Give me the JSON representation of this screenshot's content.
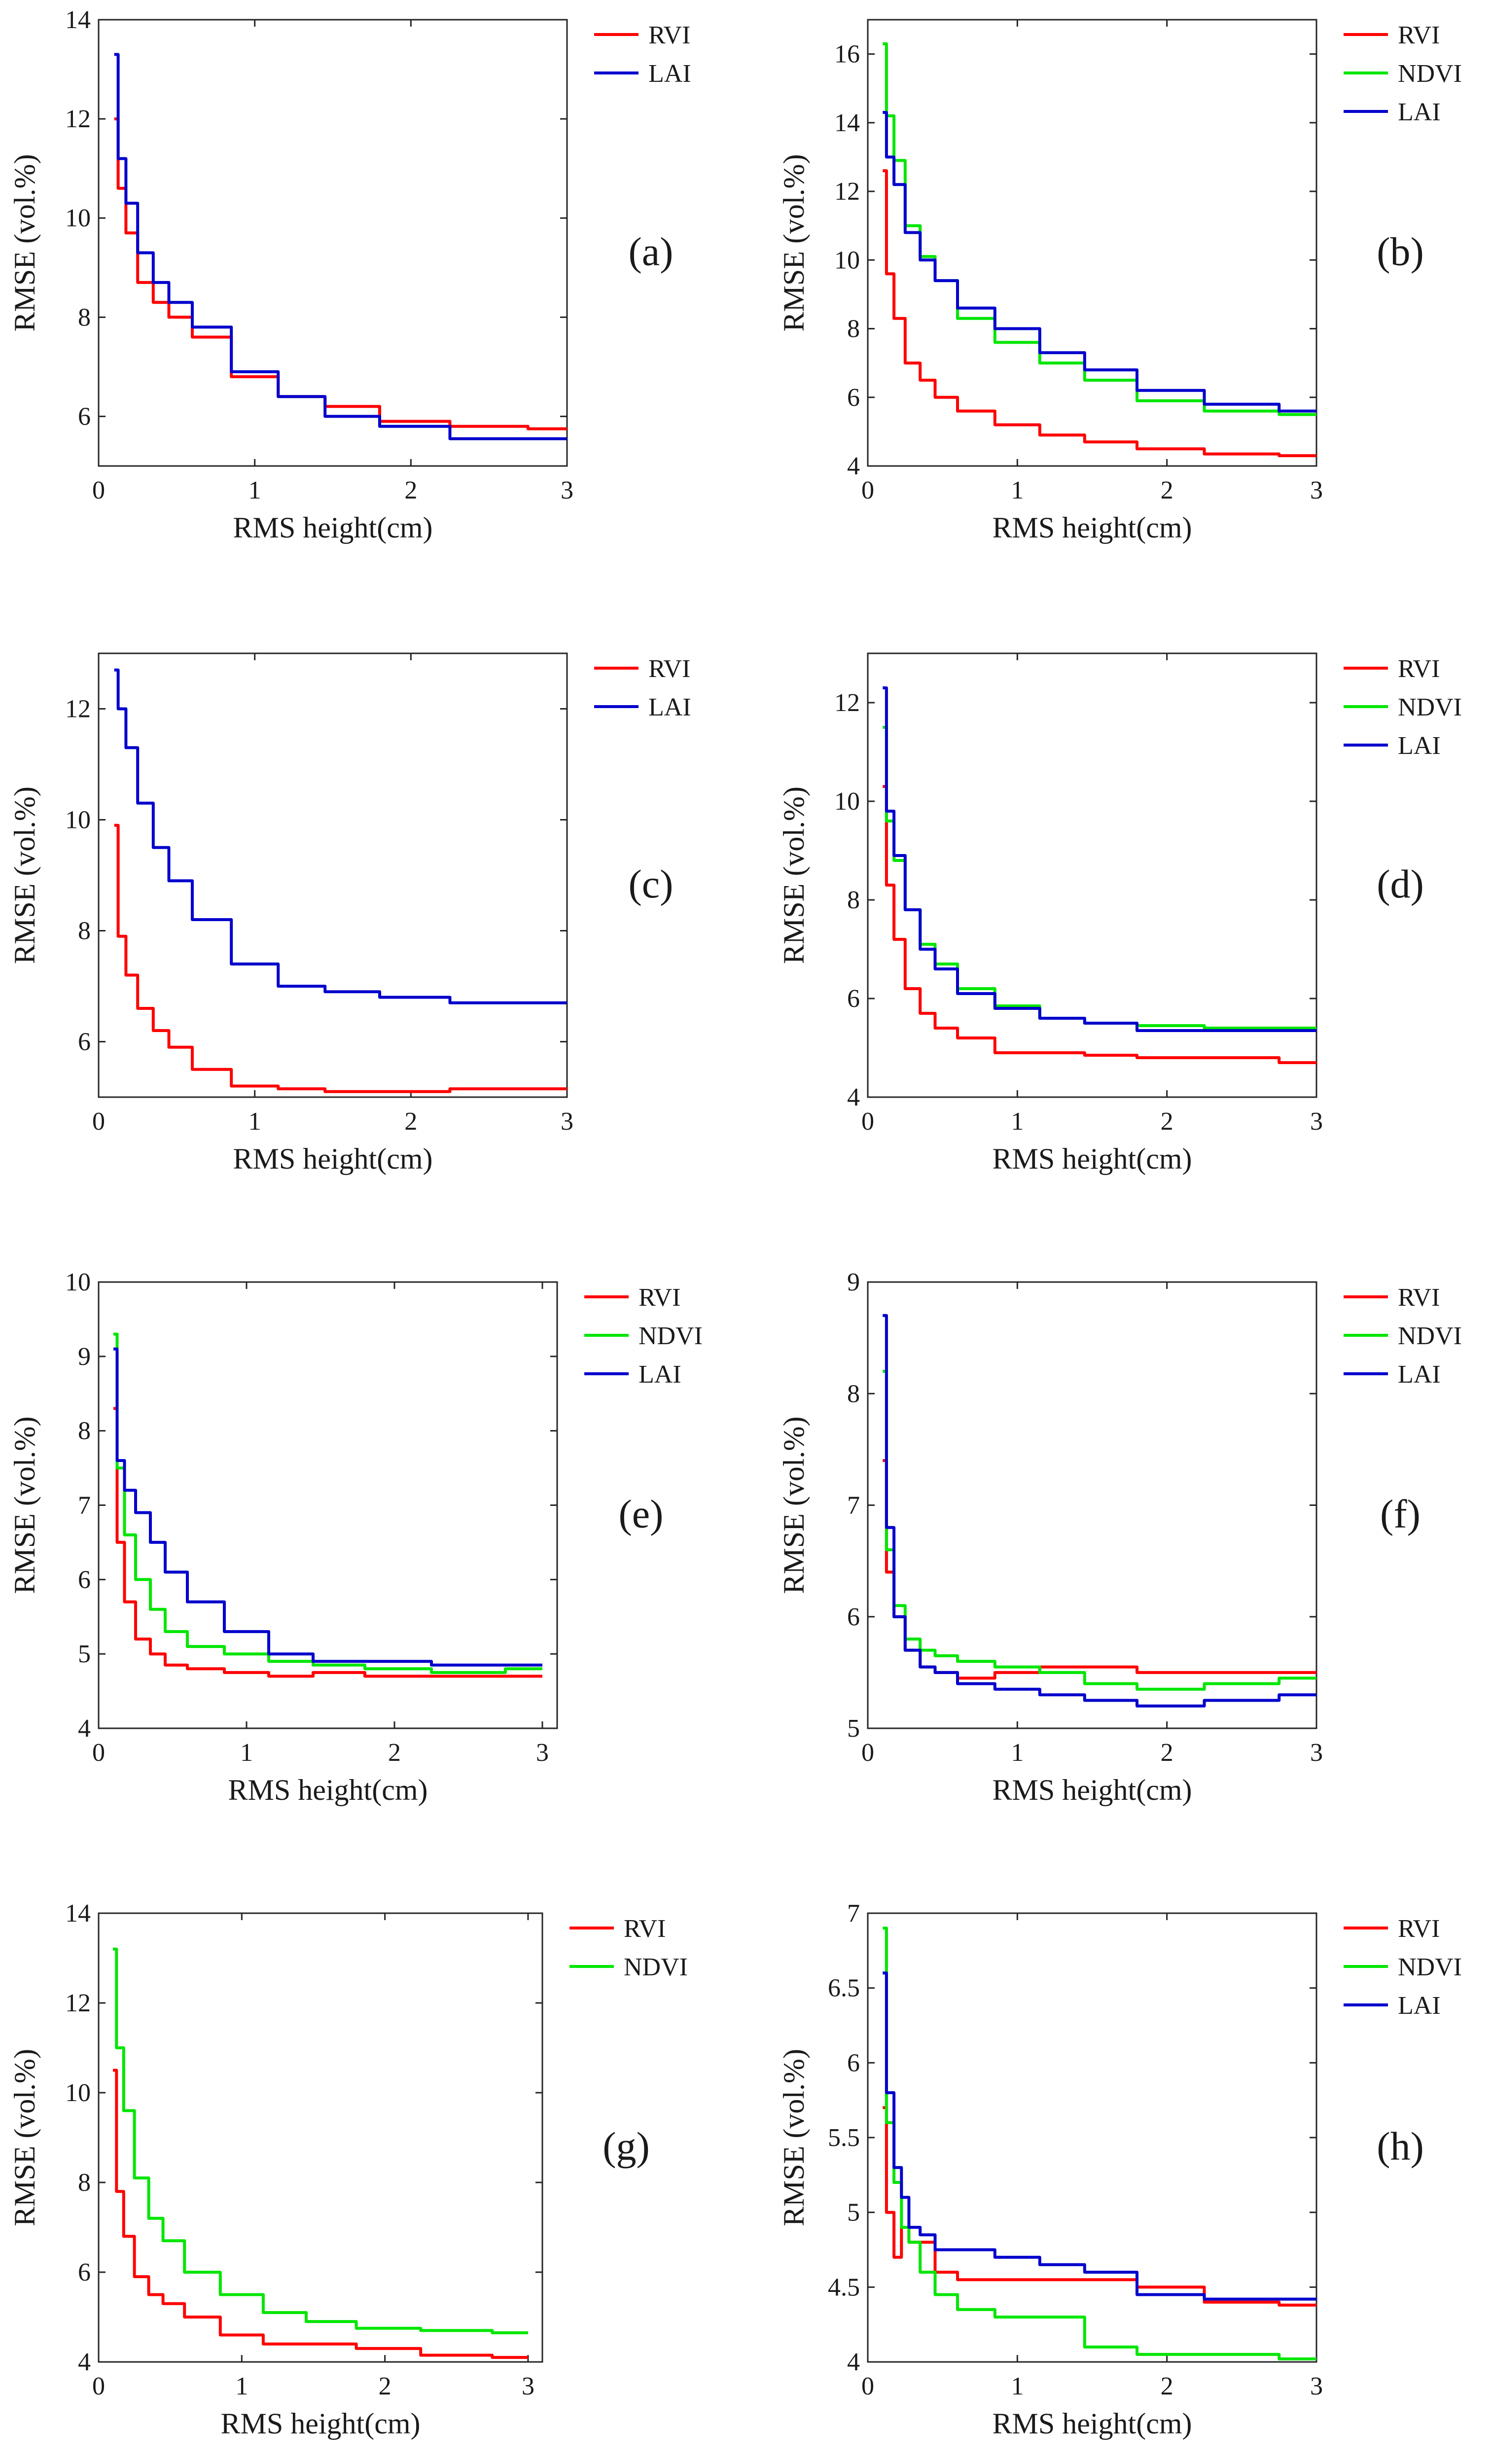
{
  "figure": {
    "xlabel": "RMS height(cm)",
    "ylabel": "RMSE (vol.%)"
  },
  "colors": {
    "RVI": "#ff0000",
    "NDVI": "#00e600",
    "LAI": "#0000cc"
  },
  "chart_data": [
    {
      "type": "line",
      "label": "(a)",
      "xlim": [
        0,
        3
      ],
      "ylim": [
        5,
        14
      ],
      "yticks": [
        "6",
        "8",
        "10",
        "12",
        "14"
      ],
      "xticks": [
        "0",
        "1",
        "2",
        "3"
      ],
      "xlabel": "RMS height(cm)",
      "ylabel": "RMSE (vol.%)",
      "x": [
        0.1,
        0.15,
        0.2,
        0.3,
        0.4,
        0.5,
        0.7,
        1.0,
        1.3,
        1.6,
        2.0,
        2.5,
        3.0
      ],
      "series": [
        {
          "name": "RVI",
          "values": [
            12.0,
            10.6,
            9.7,
            8.7,
            8.3,
            8.0,
            7.6,
            6.8,
            6.4,
            6.2,
            5.9,
            5.8,
            5.75
          ]
        },
        {
          "name": "LAI",
          "values": [
            13.3,
            11.2,
            10.3,
            9.3,
            8.7,
            8.3,
            7.8,
            6.9,
            6.4,
            6.0,
            5.8,
            5.55,
            5.55
          ]
        }
      ]
    },
    {
      "type": "line",
      "label": "(b)",
      "xlim": [
        0,
        3
      ],
      "ylim": [
        4,
        17
      ],
      "yticks": [
        "4",
        "6",
        "8",
        "10",
        "12",
        "14",
        "16"
      ],
      "xticks": [
        "0",
        "1",
        "2",
        "3"
      ],
      "xlabel": "RMS height(cm)",
      "ylabel": "RMSE (vol.%)",
      "x": [
        0.1,
        0.15,
        0.2,
        0.3,
        0.4,
        0.5,
        0.7,
        1.0,
        1.3,
        1.6,
        2.0,
        2.5,
        3.0
      ],
      "series": [
        {
          "name": "RVI",
          "values": [
            12.6,
            9.6,
            8.3,
            7.0,
            6.5,
            6.0,
            5.6,
            5.2,
            4.9,
            4.7,
            4.5,
            4.35,
            4.3
          ]
        },
        {
          "name": "NDVI",
          "values": [
            16.3,
            14.2,
            12.9,
            11.0,
            10.1,
            9.4,
            8.3,
            7.6,
            7.0,
            6.5,
            5.9,
            5.6,
            5.5
          ]
        },
        {
          "name": "LAI",
          "values": [
            14.3,
            13.0,
            12.2,
            10.8,
            10.0,
            9.4,
            8.6,
            8.0,
            7.3,
            6.8,
            6.2,
            5.8,
            5.6
          ]
        }
      ]
    },
    {
      "type": "line",
      "label": "(c)",
      "xlim": [
        0,
        3
      ],
      "ylim": [
        5,
        13
      ],
      "yticks": [
        "6",
        "8",
        "10",
        "12"
      ],
      "xticks": [
        "0",
        "1",
        "2",
        "3"
      ],
      "xlabel": "RMS height(cm)",
      "ylabel": "RMSE (vol.%)",
      "x": [
        0.1,
        0.15,
        0.2,
        0.3,
        0.4,
        0.5,
        0.7,
        1.0,
        1.3,
        1.6,
        2.0,
        2.5,
        3.0
      ],
      "series": [
        {
          "name": "RVI",
          "values": [
            9.9,
            7.9,
            7.2,
            6.6,
            6.2,
            5.9,
            5.5,
            5.2,
            5.15,
            5.1,
            5.1,
            5.15,
            5.15
          ]
        },
        {
          "name": "LAI",
          "values": [
            12.7,
            12.0,
            11.3,
            10.3,
            9.5,
            8.9,
            8.2,
            7.4,
            7.0,
            6.9,
            6.8,
            6.7,
            6.7
          ]
        }
      ]
    },
    {
      "type": "line",
      "label": "(d)",
      "xlim": [
        0,
        3
      ],
      "ylim": [
        4,
        13
      ],
      "yticks": [
        "4",
        "6",
        "8",
        "10",
        "12"
      ],
      "xticks": [
        "0",
        "1",
        "2",
        "3"
      ],
      "xlabel": "RMS height(cm)",
      "ylabel": "RMSE (vol.%)",
      "x": [
        0.1,
        0.15,
        0.2,
        0.3,
        0.4,
        0.5,
        0.7,
        1.0,
        1.3,
        1.6,
        2.0,
        2.5,
        3.0
      ],
      "series": [
        {
          "name": "RVI",
          "values": [
            10.3,
            8.3,
            7.2,
            6.2,
            5.7,
            5.4,
            5.2,
            4.9,
            4.9,
            4.85,
            4.8,
            4.8,
            4.7
          ]
        },
        {
          "name": "NDVI",
          "values": [
            11.5,
            9.6,
            8.8,
            7.8,
            7.1,
            6.7,
            6.2,
            5.85,
            5.6,
            5.5,
            5.45,
            5.4,
            5.4
          ]
        },
        {
          "name": "LAI",
          "values": [
            12.3,
            9.8,
            8.9,
            7.8,
            7.0,
            6.6,
            6.1,
            5.8,
            5.6,
            5.5,
            5.35,
            5.35,
            5.35
          ]
        }
      ]
    },
    {
      "type": "line",
      "label": "(e)",
      "xlim": [
        0,
        3.1
      ],
      "ylim": [
        4,
        10
      ],
      "yticks": [
        "4",
        "5",
        "6",
        "7",
        "8",
        "9",
        "10"
      ],
      "xticks": [
        "0",
        "1",
        "2",
        "3"
      ],
      "xlabel": "RMS height(cm)",
      "ylabel": "RMSE (vol.%)",
      "x": [
        0.1,
        0.15,
        0.2,
        0.3,
        0.4,
        0.5,
        0.7,
        1.0,
        1.3,
        1.6,
        2.0,
        2.5,
        3.0
      ],
      "series": [
        {
          "name": "RVI",
          "values": [
            8.3,
            6.5,
            5.7,
            5.2,
            5.0,
            4.85,
            4.8,
            4.75,
            4.7,
            4.75,
            4.7,
            4.7,
            4.7
          ]
        },
        {
          "name": "NDVI",
          "values": [
            9.3,
            7.5,
            6.6,
            6.0,
            5.6,
            5.3,
            5.1,
            5.0,
            4.9,
            4.85,
            4.8,
            4.75,
            4.8
          ]
        },
        {
          "name": "LAI",
          "values": [
            9.1,
            7.6,
            7.2,
            6.9,
            6.5,
            6.1,
            5.7,
            5.3,
            5.0,
            4.9,
            4.9,
            4.85,
            4.85
          ]
        }
      ]
    },
    {
      "type": "line",
      "label": "(f)",
      "xlim": [
        0,
        3
      ],
      "ylim": [
        5,
        9
      ],
      "yticks": [
        "5",
        "6",
        "7",
        "8",
        "9"
      ],
      "xticks": [
        "0",
        "1",
        "2",
        "3"
      ],
      "xlabel": "RMS height(cm)",
      "ylabel": "RMSE (vol.%)",
      "x": [
        0.1,
        0.15,
        0.2,
        0.3,
        0.4,
        0.5,
        0.7,
        1.0,
        1.3,
        1.6,
        2.0,
        2.5,
        3.0
      ],
      "series": [
        {
          "name": "RVI",
          "values": [
            7.4,
            6.4,
            6.0,
            5.7,
            5.55,
            5.5,
            5.45,
            5.5,
            5.55,
            5.55,
            5.5,
            5.5,
            5.5
          ]
        },
        {
          "name": "NDVI",
          "values": [
            8.2,
            6.6,
            6.1,
            5.8,
            5.7,
            5.65,
            5.6,
            5.55,
            5.5,
            5.4,
            5.35,
            5.4,
            5.45
          ]
        },
        {
          "name": "LAI",
          "values": [
            8.7,
            6.8,
            6.0,
            5.7,
            5.55,
            5.5,
            5.4,
            5.35,
            5.3,
            5.25,
            5.2,
            5.25,
            5.3
          ]
        }
      ]
    },
    {
      "type": "line",
      "label": "(g)",
      "xlim": [
        0,
        3.1
      ],
      "ylim": [
        4,
        14
      ],
      "yticks": [
        "4",
        "6",
        "8",
        "10",
        "12",
        "14"
      ],
      "xticks": [
        "0",
        "1",
        "2",
        "3"
      ],
      "xlabel": "RMS height(cm)",
      "ylabel": "RMSE (vol.%)",
      "x": [
        0.1,
        0.15,
        0.2,
        0.3,
        0.4,
        0.5,
        0.7,
        1.0,
        1.3,
        1.6,
        2.0,
        2.5,
        3.0
      ],
      "series": [
        {
          "name": "RVI",
          "values": [
            10.5,
            7.8,
            6.8,
            5.9,
            5.5,
            5.3,
            5.0,
            4.6,
            4.4,
            4.4,
            4.3,
            4.15,
            4.1
          ]
        },
        {
          "name": "NDVI",
          "values": [
            13.2,
            11.0,
            9.6,
            8.1,
            7.2,
            6.7,
            6.0,
            5.5,
            5.1,
            4.9,
            4.75,
            4.7,
            4.65
          ]
        }
      ]
    },
    {
      "type": "line",
      "label": "(h)",
      "xlim": [
        0,
        3
      ],
      "ylim": [
        4,
        7
      ],
      "yticks": [
        "4",
        "4.5",
        "5",
        "5.5",
        "6",
        "6.5",
        "7"
      ],
      "xticks": [
        "0",
        "1",
        "2",
        "3"
      ],
      "xlabel": "RMS height(cm)",
      "ylabel": "RMSE (vol.%)",
      "x": [
        0.1,
        0.15,
        0.2,
        0.25,
        0.3,
        0.4,
        0.5,
        0.7,
        1.0,
        1.3,
        1.6,
        2.0,
        2.5,
        3.0
      ],
      "series": [
        {
          "name": "RVI",
          "values": [
            5.7,
            5.0,
            4.7,
            4.9,
            4.8,
            4.8,
            4.6,
            4.55,
            4.55,
            4.55,
            4.55,
            4.5,
            4.4,
            4.38
          ]
        },
        {
          "name": "NDVI",
          "values": [
            6.9,
            5.6,
            5.2,
            4.9,
            4.8,
            4.6,
            4.45,
            4.35,
            4.3,
            4.3,
            4.1,
            4.05,
            4.05,
            4.02
          ]
        },
        {
          "name": "LAI",
          "values": [
            6.6,
            5.8,
            5.3,
            5.1,
            4.9,
            4.85,
            4.75,
            4.75,
            4.7,
            4.65,
            4.6,
            4.45,
            4.42,
            4.42
          ]
        }
      ]
    }
  ]
}
